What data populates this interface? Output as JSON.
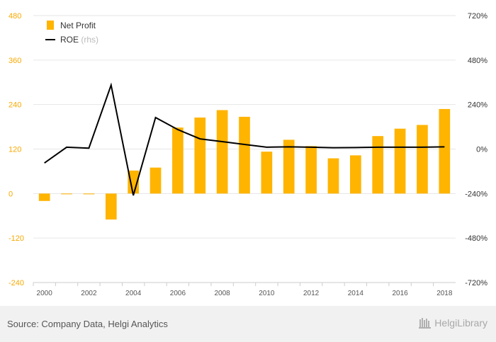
{
  "chart_data": {
    "type": "bar",
    "x": [
      "2000",
      "2001",
      "2002",
      "2003",
      "2004",
      "2005",
      "2006",
      "2007",
      "2008",
      "2009",
      "2010",
      "2011",
      "2012",
      "2013",
      "2014",
      "2015",
      "2016",
      "2017",
      "2018"
    ],
    "x_tick_labels": [
      "2000",
      "2002",
      "2004",
      "2006",
      "2008",
      "2010",
      "2012",
      "2014",
      "2016",
      "2018"
    ],
    "series": [
      {
        "name": "Net Profit",
        "type": "bar",
        "axis": "left",
        "color": "#ffb400",
        "values": [
          -20,
          -2,
          -2,
          -70,
          62,
          70,
          178,
          205,
          225,
          207,
          113,
          145,
          128,
          95,
          103,
          155,
          175,
          185,
          228
        ]
      },
      {
        "name": "ROE",
        "type": "line",
        "axis": "right",
        "color": "#000000",
        "values": [
          -75,
          10,
          5,
          345,
          -250,
          170,
          105,
          55,
          40,
          25,
          10,
          12,
          10,
          7,
          8,
          10,
          10,
          10,
          12
        ]
      }
    ],
    "y_left": {
      "ticks": [
        "480",
        "360",
        "240",
        "120",
        "0",
        "-120",
        "-240"
      ],
      "ylim": [
        -240,
        480
      ]
    },
    "y_right": {
      "ticks": [
        "720%",
        "480%",
        "240%",
        "0%",
        "-240%",
        "-480%",
        "-720%"
      ],
      "ylim": [
        -720,
        720
      ]
    },
    "legend": {
      "position": "top-left",
      "items": [
        {
          "label": "Net Profit",
          "note": ""
        },
        {
          "label": "ROE",
          "note": "(rhs)"
        }
      ]
    },
    "grid": true
  },
  "footer": {
    "source": "Source: Company Data, Helgi Analytics",
    "brand": "HelgiLibrary"
  },
  "colors": {
    "bar": "#ffb400",
    "line": "#000000",
    "left_ticks": "#f7a900",
    "footer_bg": "#f1f1f1"
  }
}
